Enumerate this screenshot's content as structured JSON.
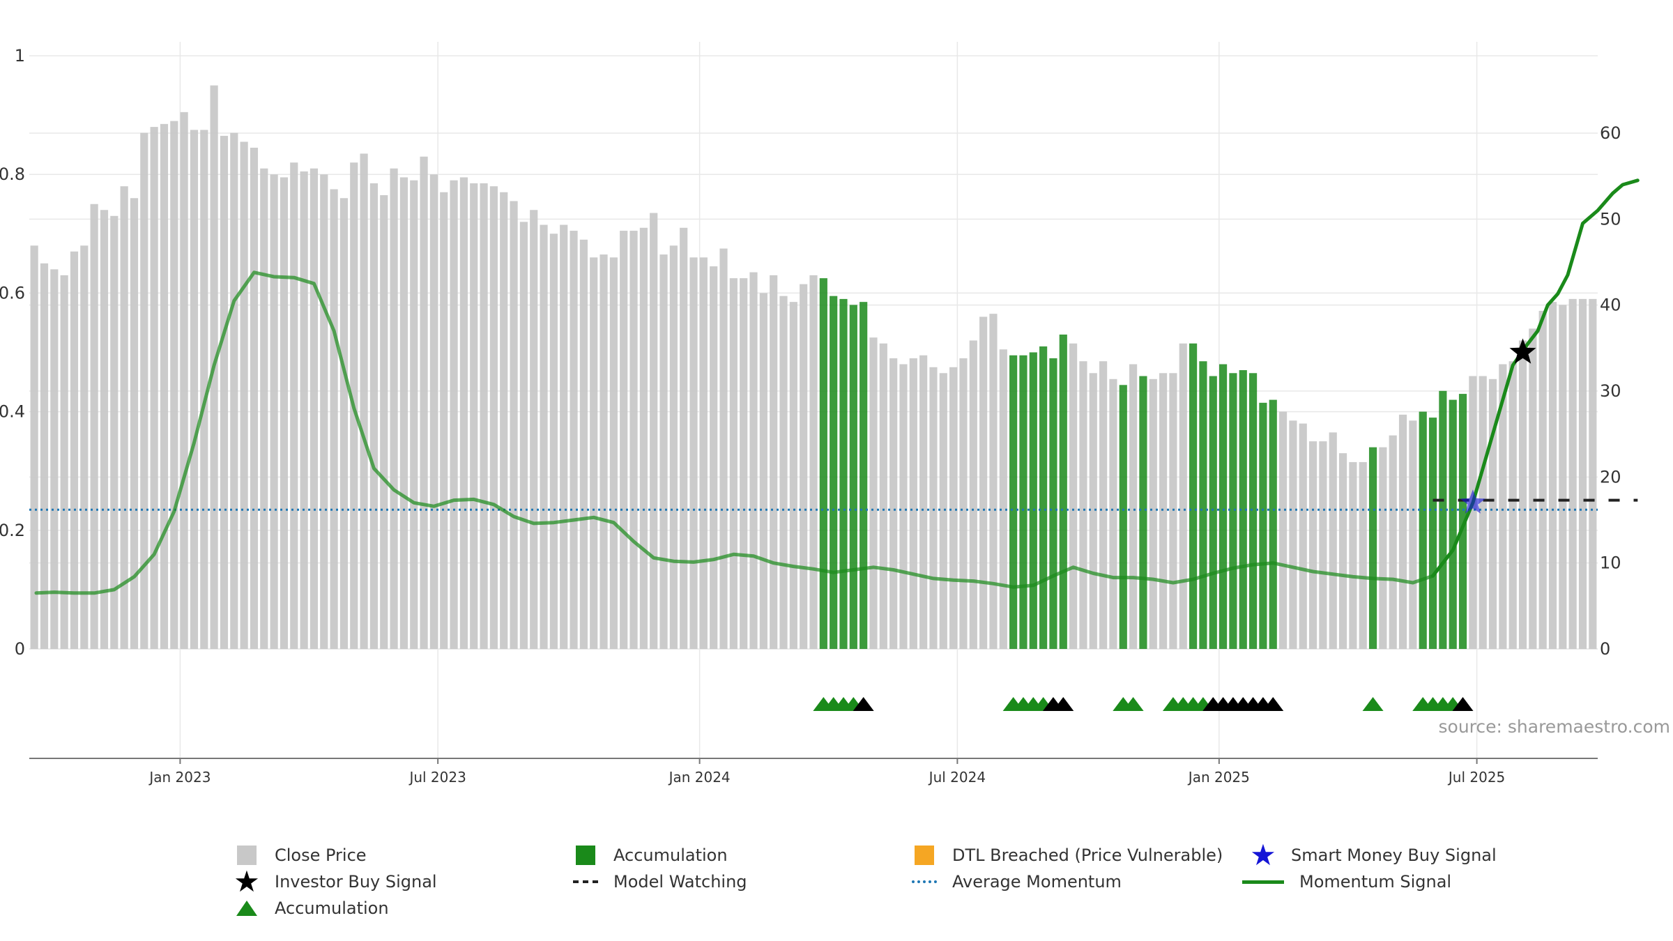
{
  "chart_data": {
    "type": "bar",
    "source_text": "source: sharemaestro.com",
    "left_axis": {
      "ylim": [
        0,
        1
      ],
      "ticks": [
        0,
        0.2,
        0.4,
        0.6,
        0.8,
        1
      ],
      "tick_labels": [
        "0",
        "0.2",
        "0.4",
        "0.6",
        "0.8",
        "1"
      ]
    },
    "right_axis": {
      "ylim": [
        0,
        69
      ],
      "ticks": [
        0,
        10,
        20,
        30,
        40,
        50,
        60
      ],
      "tick_labels": [
        "0",
        "10",
        "20",
        "30",
        "40",
        "50",
        "60"
      ]
    },
    "x_axis": {
      "tick_labels": [
        "Jan 2023",
        "Jul 2023",
        "Jan 2024",
        "Jul 2024",
        "Jan 2025",
        "Jul 2025"
      ],
      "tick_positions": [
        14.6,
        40.4,
        66.6,
        92.4,
        118.6,
        144.4
      ]
    },
    "close_price": [
      0.68,
      0.65,
      0.64,
      0.63,
      0.67,
      0.68,
      0.75,
      0.74,
      0.73,
      0.78,
      0.76,
      0.87,
      0.88,
      0.885,
      0.89,
      0.905,
      0.875,
      0.875,
      0.95,
      0.865,
      0.87,
      0.855,
      0.845,
      0.81,
      0.8,
      0.795,
      0.82,
      0.805,
      0.81,
      0.8,
      0.775,
      0.76,
      0.82,
      0.835,
      0.785,
      0.765,
      0.81,
      0.795,
      0.79,
      0.83,
      0.8,
      0.77,
      0.79,
      0.795,
      0.785,
      0.785,
      0.78,
      0.77,
      0.755,
      0.72,
      0.74,
      0.715,
      0.7,
      0.715,
      0.705,
      0.69,
      0.66,
      0.665,
      0.66,
      0.705,
      0.705,
      0.71,
      0.735,
      0.665,
      0.68,
      0.71,
      0.66,
      0.66,
      0.645,
      0.675,
      0.625,
      0.625,
      0.635,
      0.6,
      0.63,
      0.595,
      0.585,
      0.615,
      0.63,
      0.625,
      0.595,
      0.59,
      0.58,
      0.585,
      0.525,
      0.515,
      0.49,
      0.48,
      0.49,
      0.495,
      0.475,
      0.465,
      0.475,
      0.49,
      0.52,
      0.56,
      0.565,
      0.505,
      0.495,
      0.495,
      0.5,
      0.51,
      0.49,
      0.53,
      0.515,
      0.485,
      0.465,
      0.485,
      0.455,
      0.445,
      0.48,
      0.46,
      0.455,
      0.465,
      0.465,
      0.515,
      0.515,
      0.485,
      0.46,
      0.48,
      0.465,
      0.47,
      0.465,
      0.415,
      0.42,
      0.4,
      0.385,
      0.38,
      0.35,
      0.35,
      0.365,
      0.33,
      0.315,
      0.315,
      0.34,
      0.34,
      0.36,
      0.395,
      0.385,
      0.4,
      0.39,
      0.435,
      0.42,
      0.43,
      0.46,
      0.46,
      0.455,
      0.48,
      0.485,
      0.52,
      0.54,
      0.57,
      0.585,
      0.58,
      0.59,
      0.59,
      0.59
    ],
    "accumulation_bars": [
      79,
      80,
      81,
      82,
      83,
      98,
      99,
      100,
      101,
      102,
      103,
      109,
      111,
      116,
      117,
      118,
      119,
      120,
      121,
      122,
      123,
      124,
      134,
      139,
      140,
      141,
      142,
      143
    ],
    "momentum_signal": [
      [
        0.2,
        6.5
      ],
      [
        2,
        6.6
      ],
      [
        4,
        6.5
      ],
      [
        6,
        6.5
      ],
      [
        8,
        6.9
      ],
      [
        10,
        8.4
      ],
      [
        12,
        11.0
      ],
      [
        14,
        16.0
      ],
      [
        16,
        24.0
      ],
      [
        18,
        33.0
      ],
      [
        20,
        40.5
      ],
      [
        22,
        43.8
      ],
      [
        24,
        43.3
      ],
      [
        26,
        43.2
      ],
      [
        28,
        42.5
      ],
      [
        30,
        37.0
      ],
      [
        32,
        28.0
      ],
      [
        34,
        21.0
      ],
      [
        36,
        18.5
      ],
      [
        38,
        17.0
      ],
      [
        40,
        16.6
      ],
      [
        42,
        17.3
      ],
      [
        44,
        17.4
      ],
      [
        46,
        16.8
      ],
      [
        48,
        15.4
      ],
      [
        50,
        14.6
      ],
      [
        52,
        14.7
      ],
      [
        54,
        15.0
      ],
      [
        56,
        15.3
      ],
      [
        58,
        14.7
      ],
      [
        60,
        12.5
      ],
      [
        62,
        10.6
      ],
      [
        64,
        10.2
      ],
      [
        66,
        10.1
      ],
      [
        68,
        10.4
      ],
      [
        70,
        11.0
      ],
      [
        72,
        10.8
      ],
      [
        74,
        10.0
      ],
      [
        76,
        9.6
      ],
      [
        78,
        9.3
      ],
      [
        80,
        8.9
      ],
      [
        82,
        9.2
      ],
      [
        84,
        9.5
      ],
      [
        86,
        9.2
      ],
      [
        88,
        8.7
      ],
      [
        90,
        8.2
      ],
      [
        92,
        8.0
      ],
      [
        94,
        7.9
      ],
      [
        96,
        7.6
      ],
      [
        98,
        7.2
      ],
      [
        100,
        7.4
      ],
      [
        102,
        8.5
      ],
      [
        104,
        9.5
      ],
      [
        106,
        8.8
      ],
      [
        108,
        8.3
      ],
      [
        110,
        8.3
      ],
      [
        112,
        8.1
      ],
      [
        114,
        7.7
      ],
      [
        116,
        8.1
      ],
      [
        118,
        8.8
      ],
      [
        120,
        9.4
      ],
      [
        122,
        9.8
      ],
      [
        124,
        10.0
      ],
      [
        126,
        9.5
      ],
      [
        128,
        9.0
      ],
      [
        130,
        8.7
      ],
      [
        132,
        8.4
      ],
      [
        134,
        8.2
      ],
      [
        136,
        8.1
      ],
      [
        138,
        7.7
      ],
      [
        140,
        8.5
      ],
      [
        142,
        11.5
      ],
      [
        144,
        17.0
      ],
      [
        146,
        25.0
      ],
      [
        148,
        33.0
      ],
      [
        149.5,
        35.5
      ],
      [
        150.5,
        37.0
      ],
      [
        151.5,
        40.0
      ],
      [
        152.5,
        41.3
      ],
      [
        153.5,
        43.5
      ],
      [
        154,
        45.5
      ],
      [
        155,
        49.5
      ],
      [
        156.5,
        51.0
      ],
      [
        158,
        53.0
      ],
      [
        159,
        54.0
      ],
      [
        160.5,
        54.5
      ]
    ],
    "momentum_signal_faded_until": 140,
    "average_momentum": 16.2,
    "model_watching": {
      "from": 140,
      "to": 160.5,
      "level": 17.3
    },
    "smart_money_buy_signal": {
      "x": 144,
      "value": 17.0
    },
    "investor_buy_signal": {
      "x": 149,
      "value": 34.5
    },
    "triangle_markers": [
      {
        "x": 79,
        "color": "green"
      },
      {
        "x": 80,
        "color": "green"
      },
      {
        "x": 81,
        "color": "green"
      },
      {
        "x": 82,
        "color": "green"
      },
      {
        "x": 83,
        "color": "black"
      },
      {
        "x": 98,
        "color": "green"
      },
      {
        "x": 99,
        "color": "green"
      },
      {
        "x": 100,
        "color": "green"
      },
      {
        "x": 101,
        "color": "green"
      },
      {
        "x": 102,
        "color": "black"
      },
      {
        "x": 103,
        "color": "black"
      },
      {
        "x": 109,
        "color": "green"
      },
      {
        "x": 110,
        "color": "green"
      },
      {
        "x": 114,
        "color": "green"
      },
      {
        "x": 115,
        "color": "green"
      },
      {
        "x": 116,
        "color": "green"
      },
      {
        "x": 117,
        "color": "green"
      },
      {
        "x": 118,
        "color": "black"
      },
      {
        "x": 119,
        "color": "black"
      },
      {
        "x": 120,
        "color": "black"
      },
      {
        "x": 121,
        "color": "black"
      },
      {
        "x": 122,
        "color": "black"
      },
      {
        "x": 123,
        "color": "black"
      },
      {
        "x": 124,
        "color": "black"
      },
      {
        "x": 134,
        "color": "green"
      },
      {
        "x": 139,
        "color": "green"
      },
      {
        "x": 140,
        "color": "green"
      },
      {
        "x": 141,
        "color": "green"
      },
      {
        "x": 142,
        "color": "green"
      },
      {
        "x": 143,
        "color": "black"
      }
    ],
    "colors": {
      "close_price": "#c8c8c8",
      "accumulation": "#1a8a1a",
      "dtl_breached": "#f5a623",
      "model_watching": "#222222",
      "average_momentum": "#1f77b4",
      "momentum_signal": "#1a8a1a",
      "smart_money": "#1515d6",
      "investor_buy": "#000000",
      "grid": "#e8e8e8",
      "axis_text": "#333333",
      "source_text": "#999999"
    }
  },
  "legend": {
    "items": [
      {
        "key": "close",
        "label": "Close Price",
        "swatch": "square",
        "color": "#c8c8c8"
      },
      {
        "key": "accum_bar",
        "label": "Accumulation",
        "swatch": "square",
        "color": "#1a8a1a"
      },
      {
        "key": "dtl",
        "label": "DTL Breached (Price Vulnerable)",
        "swatch": "square",
        "color": "#f5a623"
      },
      {
        "key": "smart_money",
        "label": "Smart Money Buy Signal",
        "swatch": "star",
        "color": "#1515d6"
      },
      {
        "key": "investor",
        "label": "Investor Buy Signal",
        "swatch": "star",
        "color": "#000000"
      },
      {
        "key": "watching",
        "label": "Model Watching",
        "swatch": "dash",
        "color": "#222222"
      },
      {
        "key": "avg",
        "label": "Average Momentum",
        "swatch": "dotted",
        "color": "#1f77b4"
      },
      {
        "key": "momentum",
        "label": "Momentum Signal",
        "swatch": "line",
        "color": "#1a8a1a"
      },
      {
        "key": "accum_tri",
        "label": "Accumulation",
        "swatch": "triangle",
        "color": "#1a8a1a"
      }
    ]
  }
}
